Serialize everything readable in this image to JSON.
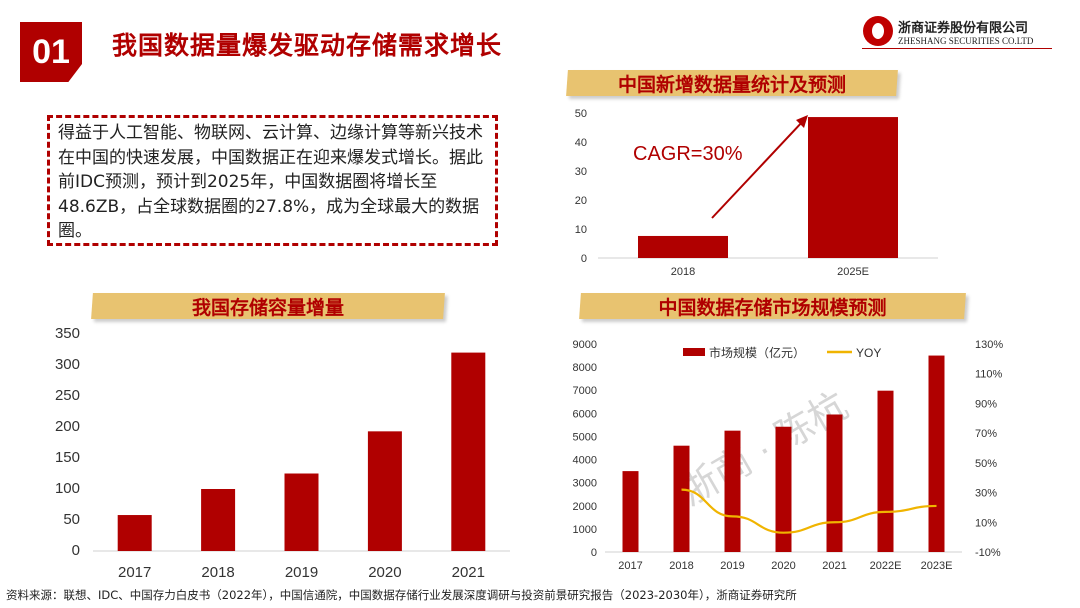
{
  "header": {
    "badge": "01",
    "title": "我国数据量爆发驱动存储需求增长",
    "logo_cn": "浙商证券股份有限公司",
    "logo_en": "ZHESHANG SECURITIES CO.LTD"
  },
  "textbox": "得益于人工智能、物联网、云计算、边缘计算等新兴技术在中国的快速发展，中国数据正在迎来爆发式增长。据此前IDC预测，预计到2025年，中国数据圈将增长至48.6ZB，占全球数据圈的27.8%，成为全球最大的数据圈。",
  "source": "资料来源：联想、IDC、中国存力白皮书（2022年），中国信通院，中国数据存储行业发展深度调研与投资前景研究报告（2023-2030年），浙商证券研究所",
  "watermark": "浙商 · 陈杭",
  "colors": {
    "accent": "#b00000",
    "banner": "#e8c370",
    "line": "#f0b400"
  },
  "chart_data": [
    {
      "id": "new-data",
      "type": "bar",
      "title": "中国新增数据量统计及预测",
      "categories": [
        "2018",
        "2025E"
      ],
      "values": [
        7.6,
        48.6
      ],
      "ylim": [
        0,
        50
      ],
      "yticks": [
        0,
        10,
        20,
        30,
        40,
        50
      ],
      "annotation": "CAGR=30%"
    },
    {
      "id": "storage-capacity",
      "type": "bar",
      "title": "我国存储容量增量",
      "categories": [
        "2017",
        "2018",
        "2019",
        "2020",
        "2021"
      ],
      "values": [
        58,
        100,
        125,
        193,
        320
      ],
      "ylim": [
        0,
        350
      ],
      "yticks": [
        0,
        50,
        100,
        150,
        200,
        250,
        300,
        350
      ]
    },
    {
      "id": "storage-market",
      "type": "bar+line",
      "title": "中国数据存储市场规模预测",
      "categories": [
        "2017",
        "2018",
        "2019",
        "2020",
        "2021",
        "2022E",
        "2023E"
      ],
      "series": [
        {
          "name": "市场规模（亿元）",
          "type": "bar",
          "values": [
            3500,
            4600,
            5250,
            5420,
            5950,
            6980,
            8500
          ]
        },
        {
          "name": "YOY",
          "type": "line",
          "axis": "right",
          "values": [
            null,
            32,
            14,
            3,
            10,
            17,
            21
          ]
        }
      ],
      "ylim": [
        0,
        9000
      ],
      "yticks": [
        0,
        1000,
        2000,
        3000,
        4000,
        5000,
        6000,
        7000,
        8000,
        9000
      ],
      "y2lim": [
        -10,
        130
      ],
      "y2ticks": [
        "-10%",
        "10%",
        "30%",
        "50%",
        "70%",
        "90%",
        "110%",
        "130%"
      ],
      "legend": "top"
    }
  ]
}
